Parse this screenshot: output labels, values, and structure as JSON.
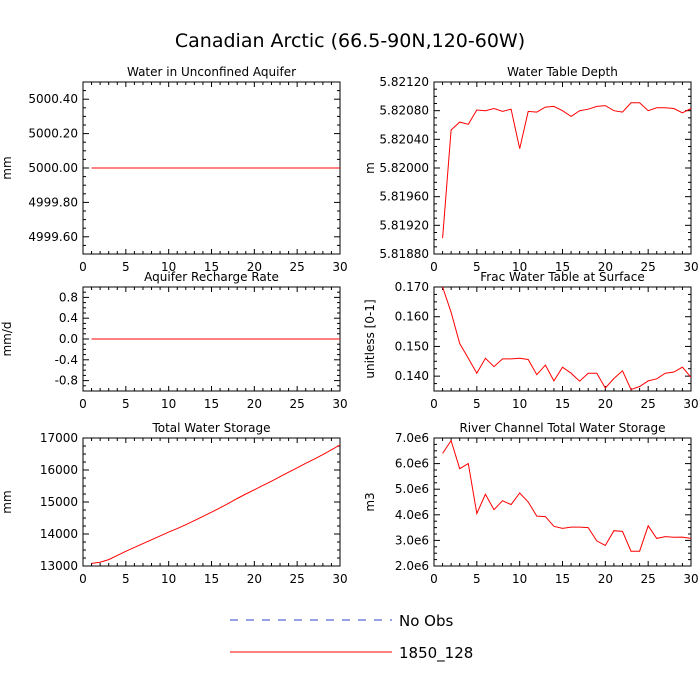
{
  "title": "Canadian Arctic (66.5-90N,120-60W)",
  "legend": [
    {
      "label": "No Obs",
      "color": "#3344cc",
      "dashed": true
    },
    {
      "label": "1850_128",
      "color": "#ff0000",
      "dashed": false
    }
  ],
  "chart_data": [
    {
      "type": "line",
      "title": "Water in Unconfined Aquifer",
      "ylabel": "mm",
      "xlim": [
        0,
        30
      ],
      "ylim": [
        4999.5,
        5000.5
      ],
      "xticks": [
        0,
        5,
        10,
        15,
        20,
        25,
        30
      ],
      "yticks": [
        4999.6,
        4999.8,
        5000.0,
        5000.2,
        5000.4
      ],
      "ytick_labels": [
        "4999.60",
        "4999.80",
        "5000.00",
        "5000.20",
        "5000.40"
      ],
      "series": [
        {
          "color": "#ff0000",
          "x": [
            1,
            2,
            3,
            4,
            5,
            6,
            7,
            8,
            9,
            10,
            11,
            12,
            13,
            14,
            15,
            16,
            17,
            18,
            19,
            20,
            21,
            22,
            23,
            24,
            25,
            26,
            27,
            28,
            29,
            30
          ],
          "values": [
            5000.0,
            5000.0,
            5000.0,
            5000.0,
            5000.0,
            5000.0,
            5000.0,
            5000.0,
            5000.0,
            5000.0,
            5000.0,
            5000.0,
            5000.0,
            5000.0,
            5000.0,
            5000.0,
            5000.0,
            5000.0,
            5000.0,
            5000.0,
            5000.0,
            5000.0,
            5000.0,
            5000.0,
            5000.0,
            5000.0,
            5000.0,
            5000.0,
            5000.0,
            5000.0
          ]
        }
      ]
    },
    {
      "type": "line",
      "title": "Water Table Depth",
      "ylabel": "m",
      "xlim": [
        0,
        30
      ],
      "ylim": [
        5.8188,
        5.8212
      ],
      "xticks": [
        0,
        5,
        10,
        15,
        20,
        25,
        30
      ],
      "yticks": [
        5.8188,
        5.8192,
        5.8196,
        5.82,
        5.8204,
        5.8208,
        5.8212
      ],
      "ytick_labels": [
        "5.81880",
        "5.81920",
        "5.81960",
        "5.82000",
        "5.82040",
        "5.82080",
        "5.82120"
      ],
      "series": [
        {
          "color": "#ff0000",
          "x": [
            1,
            2,
            3,
            4,
            5,
            6,
            7,
            8,
            9,
            10,
            11,
            12,
            13,
            14,
            15,
            16,
            17,
            18,
            19,
            20,
            21,
            22,
            23,
            24,
            25,
            26,
            27,
            28,
            29,
            30
          ],
          "values": [
            5.81902,
            5.82053,
            5.82064,
            5.82061,
            5.82081,
            5.8208,
            5.82083,
            5.82079,
            5.82082,
            5.82027,
            5.82079,
            5.82078,
            5.82085,
            5.82086,
            5.8208,
            5.82072,
            5.8208,
            5.82082,
            5.82086,
            5.82087,
            5.8208,
            5.82078,
            5.82091,
            5.82091,
            5.8208,
            5.82084,
            5.82084,
            5.82083,
            5.82077,
            5.82083
          ]
        }
      ]
    },
    {
      "type": "line",
      "title": "Aquifer Recharge Rate",
      "ylabel": "mm/d",
      "xlim": [
        0,
        30
      ],
      "ylim": [
        -1.0,
        1.0
      ],
      "xticks": [
        0,
        5,
        10,
        15,
        20,
        25,
        30
      ],
      "yticks": [
        -0.8,
        -0.4,
        0.0,
        0.4,
        0.8
      ],
      "ytick_labels": [
        "-0.8",
        "-0.4",
        "0.0",
        "0.4",
        "0.8"
      ],
      "series": [
        {
          "color": "#ff0000",
          "x": [
            1,
            2,
            3,
            4,
            5,
            6,
            7,
            8,
            9,
            10,
            11,
            12,
            13,
            14,
            15,
            16,
            17,
            18,
            19,
            20,
            21,
            22,
            23,
            24,
            25,
            26,
            27,
            28,
            29,
            30
          ],
          "values": [
            0,
            0,
            0,
            0,
            0,
            0,
            0,
            0,
            0,
            0,
            0,
            0,
            0,
            0,
            0,
            0,
            0,
            0,
            0,
            0,
            0,
            0,
            0,
            0,
            0,
            0,
            0,
            0,
            0,
            0
          ]
        }
      ]
    },
    {
      "type": "line",
      "title": "Frac Water Table at Surface",
      "ylabel": "unitless [0-1]",
      "xlim": [
        0,
        30
      ],
      "ylim": [
        0.135,
        0.17
      ],
      "xticks": [
        0,
        5,
        10,
        15,
        20,
        25,
        30
      ],
      "yticks": [
        0.14,
        0.15,
        0.16,
        0.17
      ],
      "ytick_labels": [
        "0.140",
        "0.150",
        "0.160",
        "0.170"
      ],
      "series": [
        {
          "color": "#ff0000",
          "x": [
            1,
            2,
            3,
            4,
            5,
            6,
            7,
            8,
            9,
            10,
            11,
            12,
            13,
            14,
            15,
            16,
            17,
            18,
            19,
            20,
            21,
            22,
            23,
            24,
            25,
            26,
            27,
            28,
            29,
            30
          ],
          "values": [
            0.17,
            0.1615,
            0.151,
            0.146,
            0.141,
            0.146,
            0.1432,
            0.1458,
            0.1458,
            0.146,
            0.1456,
            0.1405,
            0.1437,
            0.1384,
            0.143,
            0.141,
            0.1383,
            0.141,
            0.141,
            0.136,
            0.1392,
            0.1418,
            0.1355,
            0.1365,
            0.1384,
            0.1391,
            0.141,
            0.1414,
            0.143,
            0.1396
          ]
        }
      ]
    },
    {
      "type": "line",
      "title": "Total Water Storage",
      "ylabel": "mm",
      "xlim": [
        0,
        30
      ],
      "ylim": [
        13000,
        17000
      ],
      "xticks": [
        0,
        5,
        10,
        15,
        20,
        25,
        30
      ],
      "yticks": [
        13000,
        14000,
        15000,
        16000,
        17000
      ],
      "ytick_labels": [
        "13000",
        "14000",
        "15000",
        "16000",
        "17000"
      ],
      "series": [
        {
          "color": "#ff0000",
          "x": [
            1,
            2,
            3,
            4,
            5,
            6,
            7,
            8,
            9,
            10,
            11,
            12,
            13,
            14,
            15,
            16,
            17,
            18,
            19,
            20,
            21,
            22,
            23,
            24,
            25,
            26,
            27,
            28,
            29,
            30
          ],
          "values": [
            13080,
            13120,
            13200,
            13330,
            13460,
            13580,
            13700,
            13820,
            13940,
            14060,
            14170,
            14290,
            14420,
            14550,
            14680,
            14820,
            14960,
            15110,
            15250,
            15380,
            15520,
            15650,
            15790,
            15930,
            16070,
            16210,
            16340,
            16480,
            16630,
            16780
          ]
        }
      ]
    },
    {
      "type": "line",
      "title": "River Channel Total Water Storage",
      "ylabel": "m3",
      "xlim": [
        0,
        30
      ],
      "ylim": [
        2000000,
        7000000
      ],
      "xticks": [
        0,
        5,
        10,
        15,
        20,
        25,
        30
      ],
      "yticks": [
        2000000,
        3000000,
        4000000,
        5000000,
        6000000,
        7000000
      ],
      "ytick_labels": [
        "2.0e6",
        "3.0e6",
        "4.0e6",
        "5.0e6",
        "6.0e6",
        "7.0e6"
      ],
      "series": [
        {
          "color": "#ff0000",
          "x": [
            1,
            2,
            3,
            4,
            5,
            6,
            7,
            8,
            9,
            10,
            11,
            12,
            13,
            14,
            15,
            16,
            17,
            18,
            19,
            20,
            21,
            22,
            23,
            24,
            25,
            26,
            27,
            28,
            29,
            30
          ],
          "values": [
            6400000,
            6900000,
            5800000,
            6000000,
            4050000,
            4800000,
            4200000,
            4550000,
            4400000,
            4850000,
            4500000,
            3950000,
            3930000,
            3550000,
            3470000,
            3520000,
            3520000,
            3500000,
            2980000,
            2800000,
            3380000,
            3350000,
            2580000,
            2580000,
            3570000,
            3080000,
            3150000,
            3120000,
            3130000,
            3080000
          ]
        }
      ]
    }
  ]
}
